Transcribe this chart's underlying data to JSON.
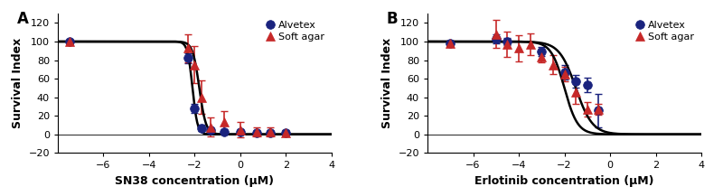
{
  "panel_A": {
    "label": "A",
    "xlabel": "SN38 concentration (μM)",
    "ylabel": "Survival Index",
    "xlim": [
      -8,
      4
    ],
    "ylim": [
      -20,
      130
    ],
    "xticks": [
      -6,
      -4,
      -2,
      0,
      2,
      4
    ],
    "yticks": [
      -20,
      0,
      20,
      40,
      60,
      80,
      100,
      120
    ],
    "alvetex_x": [
      -7.5,
      -2.3,
      -2.0,
      -1.7,
      -1.3,
      -0.7,
      0.0,
      0.7,
      1.3,
      2.0
    ],
    "alvetex_y": [
      100,
      82,
      28,
      7,
      5,
      3,
      3,
      2,
      2,
      2
    ],
    "alvetex_yerr": [
      2,
      5,
      5,
      3,
      2,
      2,
      2,
      2,
      2,
      2
    ],
    "softagar_x": [
      -7.5,
      -2.3,
      -2.0,
      -1.7,
      -1.3,
      -0.7,
      0.0,
      0.7,
      1.3,
      2.0
    ],
    "softagar_y": [
      100,
      93,
      75,
      40,
      8,
      13,
      5,
      3,
      3,
      2
    ],
    "softagar_yerr": [
      2,
      15,
      20,
      18,
      10,
      12,
      8,
      5,
      5,
      3
    ],
    "curve_alvetex_ec50": -2.1,
    "curve_alvetex_slope": 4.0,
    "curve_softagar_ec50": -1.8,
    "curve_softagar_slope": 3.0
  },
  "panel_B": {
    "label": "B",
    "xlabel": "Erlotinib concentration (μM)",
    "ylabel": "Survival Index",
    "xlim": [
      -8,
      4
    ],
    "ylim": [
      -20,
      130
    ],
    "xticks": [
      -6,
      -4,
      -2,
      0,
      2,
      4
    ],
    "yticks": [
      -20,
      0,
      20,
      40,
      60,
      80,
      100,
      120
    ],
    "alvetex_x": [
      -7.0,
      -5.0,
      -4.5,
      -3.0,
      -2.0,
      -1.5,
      -1.0,
      -0.5
    ],
    "alvetex_y": [
      98,
      103,
      100,
      89,
      67,
      57,
      53,
      26
    ],
    "alvetex_yerr": [
      3,
      5,
      4,
      5,
      8,
      7,
      8,
      18
    ],
    "softagar_x": [
      -7.0,
      -5.0,
      -4.5,
      -4.0,
      -3.5,
      -3.0,
      -2.5,
      -2.0,
      -1.5,
      -1.0,
      -0.5
    ],
    "softagar_y": [
      98,
      108,
      97,
      93,
      97,
      83,
      75,
      65,
      45,
      27,
      27
    ],
    "softagar_yerr": [
      3,
      15,
      14,
      14,
      12,
      5,
      10,
      8,
      12,
      8,
      6
    ],
    "curve_alvetex_ec50": -1.5,
    "curve_alvetex_slope": 1.2,
    "curve_softagar_ec50": -2.0,
    "curve_softagar_slope": 1.5
  },
  "alvetex_color": "#1a237e",
  "softagar_color": "#c62828",
  "curve_color": "#000000",
  "marker_size": 7,
  "linewidth": 1.8,
  "capsize": 3,
  "elinewidth": 1.2
}
